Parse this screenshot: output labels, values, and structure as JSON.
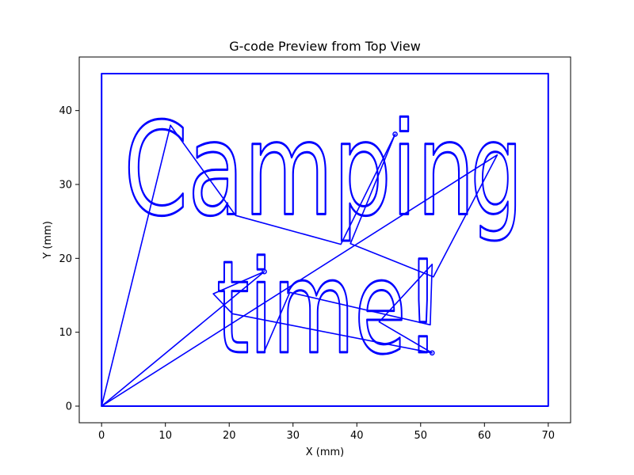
{
  "chart_data": {
    "type": "line",
    "title": "G-code Preview from Top View",
    "xlabel": "X (mm)",
    "ylabel": "Y (mm)",
    "xlim": [
      -3.5,
      73.5
    ],
    "ylim": [
      -2.25,
      47.25
    ],
    "xticks": [
      0,
      10,
      20,
      30,
      40,
      50,
      60,
      70
    ],
    "yticks": [
      0,
      10,
      20,
      30,
      40
    ],
    "grid": false,
    "legend": "none",
    "series": [
      {
        "color": "#0000ff",
        "border": [
          [
            0,
            0
          ],
          [
            0,
            45
          ],
          [
            70,
            45
          ],
          [
            70,
            0
          ],
          [
            0,
            0
          ]
        ],
        "travel_moves": [
          [
            [
              0,
              0
            ],
            [
              10.8,
              38
            ]
          ],
          [
            [
              10.8,
              38
            ],
            [
              21,
              25.8
            ],
            [
              37.5,
              21.9
            ],
            [
              46,
              36.8
            ]
          ],
          [
            [
              46,
              36.8
            ],
            [
              39,
              22
            ],
            [
              52,
              17.5
            ],
            [
              62,
              34
            ],
            [
              0,
              0
            ]
          ],
          [
            [
              0,
              0
            ],
            [
              25.5,
              18.2
            ],
            [
              17.5,
              15.2
            ],
            [
              20.5,
              12.5
            ]
          ],
          [
            [
              20.5,
              12.5
            ],
            [
              51.8,
              7.2
            ],
            [
              43.5,
              11.4
            ],
            [
              51.8,
              19.2
            ],
            [
              51.5,
              11
            ],
            [
              29.5,
              15.4
            ],
            [
              25.5,
              7.4
            ]
          ]
        ],
        "text_paths": [
          {
            "text": "Campin",
            "baseline_y": 26,
            "cap_height": 12.5,
            "x_start": 3.5,
            "x_end": 58.5
          },
          {
            "text": "g",
            "baseline_y": 26,
            "cap_height": 12.5,
            "x_start": 57.8,
            "x_end": 66
          },
          {
            "text": "time!",
            "baseline_y": 7.3,
            "cap_height": 12.5,
            "x_start": 18,
            "x_end": 53
          }
        ]
      }
    ]
  }
}
